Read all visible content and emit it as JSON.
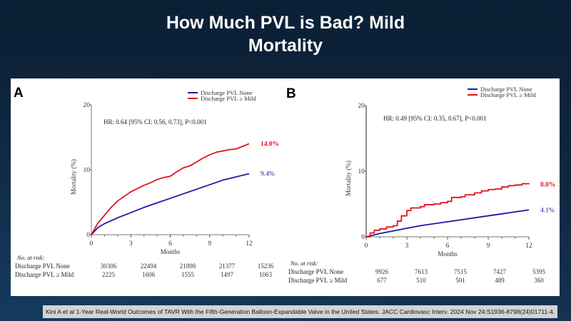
{
  "slide": {
    "title_line1": "How Much PVL is Bad? Mild",
    "title_line2": "Mortality",
    "citation": "Kini A et al 1-Year Real-World Outcomes of TAVR With the Fifth-Generation Balloon-Expandable Valve in the United States. JACC Cardiovasc Interv. 2024 Nov 24:S1936-8798(24)01711-4."
  },
  "colors": {
    "none_series": "#1a1aa6",
    "mild_series": "#e0141c",
    "background": "#0e2339"
  },
  "chart_data": [
    {
      "type": "line",
      "panel_label": "A",
      "title": "",
      "xlabel": "Months",
      "ylabel": "Mortality (%)",
      "xlim": [
        0,
        12
      ],
      "ylim": [
        0,
        20
      ],
      "xticks": [
        "0",
        "3",
        "6",
        "9",
        "12"
      ],
      "yticks": [
        "0",
        "10",
        "20"
      ],
      "legend_position": "top-right",
      "annotation": "HR: 0.64 [95% CI: 0.56, 0.73], P<0.001",
      "series": [
        {
          "name": "Discharge PVL None",
          "color": "#1a1aa6",
          "end_label": "9.4%",
          "x": [
            0,
            0.5,
            1,
            2,
            3,
            4,
            5,
            6,
            7,
            8,
            9,
            10,
            11,
            12
          ],
          "y": [
            0,
            1.1,
            1.7,
            2.6,
            3.4,
            4.2,
            4.9,
            5.6,
            6.3,
            7.0,
            7.7,
            8.4,
            8.9,
            9.4
          ]
        },
        {
          "name": "Discharge PVL ≥ Mild",
          "color": "#e0141c",
          "end_label": "14.0%",
          "x": [
            0,
            0.5,
            1,
            1.5,
            2,
            2.5,
            3,
            3.5,
            4,
            4.5,
            5,
            5.5,
            6,
            6.5,
            7,
            7.5,
            8,
            8.5,
            9,
            9.5,
            10,
            10.5,
            11,
            11.5,
            12
          ],
          "y": [
            0,
            1.8,
            3.0,
            4.2,
            5.2,
            5.9,
            6.6,
            7.1,
            7.6,
            8.0,
            8.5,
            8.8,
            9.0,
            9.7,
            10.3,
            10.6,
            11.2,
            11.8,
            12.3,
            12.7,
            12.9,
            13.1,
            13.2,
            13.6,
            14.0
          ]
        }
      ],
      "risk_table": {
        "heading": "No. at risk:",
        "rows": [
          {
            "label": "Discharge PVL None",
            "values": [
              "30306",
              "22494",
              "21898",
              "21377",
              "15236"
            ]
          },
          {
            "label": "Discharge PVL ≥ Mild",
            "values": [
              "2225",
              "1606",
              "1555",
              "1497",
              "1063"
            ]
          }
        ]
      }
    },
    {
      "type": "line",
      "panel_label": "B",
      "title": "",
      "xlabel": "Months",
      "ylabel": "Mortality (%)",
      "xlim": [
        0,
        12
      ],
      "ylim": [
        0,
        20
      ],
      "xticks": [
        "0",
        "3",
        "6",
        "9",
        "12"
      ],
      "yticks": [
        "0",
        "10",
        "20"
      ],
      "legend_position": "top-right",
      "annotation": "HR: 0.49 [95% CI: 0.35, 0.67], P<0.001",
      "series": [
        {
          "name": "Discharge PVL None",
          "color": "#1a1aa6",
          "end_label": "4.1%",
          "x": [
            0,
            1,
            2,
            3,
            4,
            5,
            6,
            7,
            8,
            9,
            10,
            11,
            12
          ],
          "y": [
            0,
            0.5,
            0.9,
            1.3,
            1.7,
            2.0,
            2.3,
            2.6,
            2.9,
            3.2,
            3.5,
            3.8,
            4.1
          ]
        },
        {
          "name": "Discharge PVL ≥ Mild",
          "color": "#e0141c",
          "end_label": "8.0%",
          "step": true,
          "x": [
            0,
            0.3,
            0.6,
            1,
            1.5,
            2,
            2.3,
            2.6,
            3,
            3.3,
            4,
            4.3,
            5,
            5.5,
            6,
            6.3,
            7,
            7.3,
            8,
            8.5,
            9,
            9.5,
            10,
            10.5,
            11,
            11.5,
            12
          ],
          "y": [
            0,
            0.6,
            1.0,
            1.2,
            1.5,
            1.7,
            2.4,
            3.2,
            4.0,
            4.4,
            4.6,
            4.9,
            5.0,
            5.2,
            5.4,
            6.0,
            6.1,
            6.4,
            6.7,
            7.0,
            7.2,
            7.3,
            7.6,
            7.8,
            7.9,
            8.1,
            8.0
          ]
        }
      ],
      "risk_table": {
        "heading": "No. at risk:",
        "rows": [
          {
            "label": "Discharge PVL None",
            "values": [
              "9926",
              "7613",
              "7515",
              "7427",
              "5395"
            ]
          },
          {
            "label": "Discharge PVL ≥ Mild",
            "values": [
              "677",
              "510",
              "501",
              "489",
              "360"
            ]
          }
        ]
      }
    }
  ]
}
